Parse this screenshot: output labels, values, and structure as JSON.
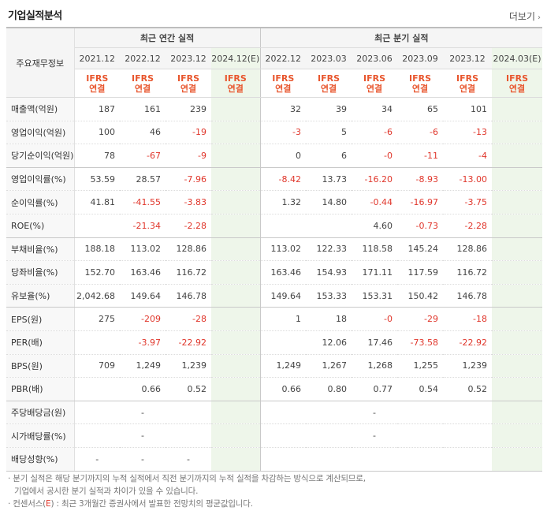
{
  "header": {
    "title": "기업실적분석",
    "more": "더보기"
  },
  "table": {
    "corner_label": "주요재무정보",
    "group_annual": "최근 연간 실적",
    "group_quarter": "최근 분기 실적",
    "annual_periods": [
      "2021.12",
      "2022.12",
      "2023.12",
      "2024.12(E)"
    ],
    "quarter_periods": [
      "2022.12",
      "2023.03",
      "2023.06",
      "2023.09",
      "2023.12",
      "2024.03(E)"
    ],
    "ifrs_top": "IFRS",
    "ifrs_bottom": "연결",
    "rows": [
      {
        "label": "매출액(억원)",
        "values": [
          "187",
          "161",
          "239",
          "",
          "32",
          "39",
          "34",
          "65",
          "101",
          ""
        ]
      },
      {
        "label": "영업이익(억원)",
        "values": [
          "100",
          "46",
          "-19",
          "",
          "-3",
          "5",
          "-6",
          "-6",
          "-13",
          ""
        ]
      },
      {
        "label": "당기순이익(억원)",
        "values": [
          "78",
          "-67",
          "-9",
          "",
          "0",
          "6",
          "-0",
          "-11",
          "-4",
          ""
        ]
      },
      {
        "label": "영업이익률(%)",
        "values": [
          "53.59",
          "28.57",
          "-7.96",
          "",
          "-8.42",
          "13.73",
          "-16.20",
          "-8.93",
          "-13.00",
          ""
        ]
      },
      {
        "label": "순이익률(%)",
        "values": [
          "41.81",
          "-41.55",
          "-3.83",
          "",
          "1.32",
          "14.80",
          "-0.44",
          "-16.97",
          "-3.75",
          ""
        ]
      },
      {
        "label": "ROE(%)",
        "values": [
          "",
          "-21.34",
          "-2.28",
          "",
          "",
          "",
          "4.60",
          "-0.73",
          "-2.28",
          ""
        ]
      },
      {
        "label": "부채비율(%)",
        "values": [
          "188.18",
          "113.02",
          "128.86",
          "",
          "113.02",
          "122.33",
          "118.58",
          "145.24",
          "128.86",
          ""
        ]
      },
      {
        "label": "당좌비율(%)",
        "values": [
          "152.70",
          "163.46",
          "116.72",
          "",
          "163.46",
          "154.93",
          "171.11",
          "117.59",
          "116.72",
          ""
        ]
      },
      {
        "label": "유보율(%)",
        "values": [
          "2,042.68",
          "149.64",
          "146.78",
          "",
          "149.64",
          "153.33",
          "153.31",
          "150.42",
          "146.78",
          ""
        ]
      },
      {
        "label": "EPS(원)",
        "values": [
          "275",
          "-209",
          "-28",
          "",
          "1",
          "18",
          "-0",
          "-29",
          "-18",
          ""
        ]
      },
      {
        "label": "PER(배)",
        "values": [
          "",
          "-3.97",
          "-22.92",
          "",
          "",
          "12.06",
          "17.46",
          "-73.58",
          "-22.92",
          ""
        ]
      },
      {
        "label": "BPS(원)",
        "values": [
          "709",
          "1,249",
          "1,239",
          "",
          "1,249",
          "1,267",
          "1,268",
          "1,255",
          "1,239",
          ""
        ]
      },
      {
        "label": "PBR(배)",
        "values": [
          "",
          "0.66",
          "0.52",
          "",
          "0.66",
          "0.80",
          "0.77",
          "0.54",
          "0.52",
          ""
        ]
      },
      {
        "label": "주당배당금(원)",
        "values": [
          "",
          "-",
          "",
          "",
          "",
          "",
          "-",
          "",
          "",
          ""
        ]
      },
      {
        "label": "시가배당률(%)",
        "values": [
          "",
          "-",
          "",
          "",
          "",
          "",
          "-",
          "",
          "",
          ""
        ]
      },
      {
        "label": "배당성향(%)",
        "values": [
          "-",
          "-",
          "-",
          "",
          "",
          "",
          "",
          "",
          "",
          ""
        ]
      }
    ]
  },
  "notes": {
    "line1": "분기 실적은 해당 분기까지의 누적 실적에서 직전 분기까지의 누적 실적을 차감하는 방식으로 계산되므로,",
    "line2": "기업에서 공시한 분기 실적과 차이가 있을 수 있습니다.",
    "line3_prefix": "컨센서스(",
    "line3_e": "E",
    "line3_suffix": ") : 최근 3개월간 증권사에서 발표한 전망치의 평균값입니다."
  }
}
